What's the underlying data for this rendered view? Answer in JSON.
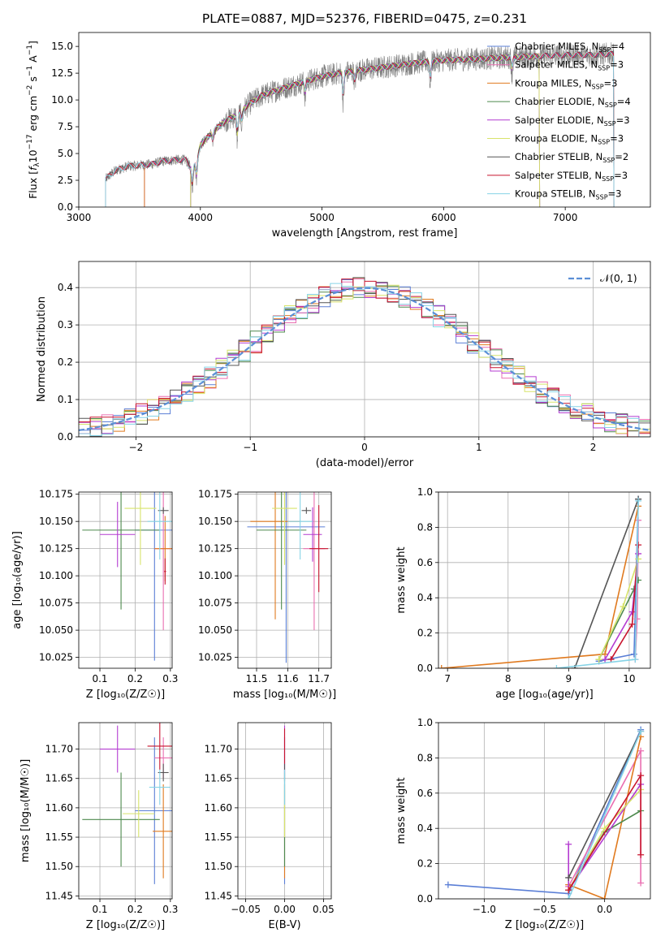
{
  "figure_title": "PLATE=0887, MJD=52376, FIBERID=0475, z=0.231",
  "colors": {
    "chabrier_miles": "#5b7fd6",
    "salpeter_miles": "#ea6fb1",
    "kroupa_miles": "#e07a1f",
    "chabrier_elodie": "#4e8a4e",
    "salpeter_elodie": "#b43bd1",
    "kroupa_elodie": "#d7e36a",
    "chabrier_stelib": "#555555",
    "salpeter_stelib": "#c8152e",
    "kroupa_stelib": "#86d3e6",
    "gaussian": "#5b8fd6",
    "data": "#808080"
  },
  "chart_data": [
    {
      "type": "line",
      "title": "PLATE=0887, MJD=52376, FIBERID=0475, z=0.231",
      "xlabel": "wavelength [Angstrom, rest frame]",
      "ylabel": "Flux [f_λ 10^-17 erg cm^-2 s^-1 A^-1]",
      "xlim": [
        3000,
        7700
      ],
      "ylim": [
        0,
        16.3
      ],
      "xticks": [
        "3000",
        "4000",
        "5000",
        "6000",
        "7000"
      ],
      "yticks": [
        "0.0",
        "2.5",
        "5.0",
        "7.5",
        "10.0",
        "12.5",
        "15.0"
      ],
      "legend_location": "right",
      "legend": [
        "Chabrier MILES, N_SSP=4",
        "Salpeter MILES, N_SSP=3",
        "Kroupa MILES, N_SSP=3",
        "Chabrier ELODIE, N_SSP=4",
        "Salpeter ELODIE, N_SSP=3",
        "Kroupa ELODIE, N_SSP=3",
        "Chabrier STELIB, N_SSP=2",
        "Salpeter STELIB, N_SSP=3",
        "Kroupa STELIB, N_SSP=3"
      ],
      "continuum": {
        "x": [
          3220,
          3300,
          3400,
          3500,
          3600,
          3700,
          3800,
          3880,
          3930,
          3970,
          4000,
          4100,
          4200,
          4300,
          4400,
          4500,
          4600,
          4800,
          5000,
          5200,
          5400,
          5600,
          5800,
          6000,
          6200,
          6400,
          6600,
          6800,
          7000,
          7200,
          7400
        ],
        "y": [
          2.6,
          3.4,
          3.8,
          3.9,
          4.0,
          4.3,
          4.4,
          4.4,
          3.5,
          4.3,
          5.8,
          7.0,
          8.0,
          8.6,
          9.6,
          10.4,
          10.8,
          11.5,
          12.2,
          12.6,
          12.9,
          13.2,
          13.5,
          13.7,
          13.8,
          13.9,
          14.0,
          14.1,
          14.2,
          14.2,
          14.3
        ]
      },
      "absorption_lines": [
        {
          "x": 3934,
          "depth": 2.0
        },
        {
          "x": 3968,
          "depth": 1.8
        },
        {
          "x": 4102,
          "depth": 1.0
        },
        {
          "x": 4304,
          "depth": 2.5
        },
        {
          "x": 4340,
          "depth": 1.2
        },
        {
          "x": 4861,
          "depth": 1.5
        },
        {
          "x": 5175,
          "depth": 3.0
        },
        {
          "x": 5270,
          "depth": 1.2
        },
        {
          "x": 5890,
          "depth": 2.0
        },
        {
          "x": 6563,
          "depth": 1.5
        }
      ],
      "model_start_x": [
        3540,
        3540,
        3540,
        3920,
        3920,
        3920,
        3220,
        3220,
        3220
      ],
      "model_end_x": [
        7400,
        7400,
        7400,
        6790,
        6790,
        6790,
        7400,
        7400,
        7400
      ]
    },
    {
      "type": "step",
      "xlabel": "(data-model)/error",
      "ylabel": "Normed distribution",
      "xlim": [
        -2.5,
        2.5
      ],
      "ylim": [
        0,
        0.47
      ],
      "xticks": [
        "−2",
        "−1",
        "0",
        "1",
        "2"
      ],
      "yticks": [
        "0.0",
        "0.1",
        "0.2",
        "0.3",
        "0.4"
      ],
      "legend": [
        "𝒩(0, 1)"
      ],
      "legend_location": "top-right",
      "bin_width": 0.1
    },
    {
      "type": "scatter",
      "xlabel": "Z [log₁₀(Z/Z☉)]",
      "ylabel": "age  [log₁₀(age/yr)]",
      "xlim": [
        0.04,
        0.305
      ],
      "ylim": [
        10.015,
        10.177
      ],
      "xticks": [
        "0.1",
        "0.2",
        "0.3"
      ],
      "yticks": [
        "10.025",
        "10.050",
        "10.075",
        "10.100",
        "10.125",
        "10.150",
        "10.175"
      ],
      "points": [
        {
          "x": 0.255,
          "y": 10.142,
          "xerr": 0.055,
          "yerr": 0.12
        },
        {
          "x": 0.28,
          "y": 10.125,
          "xerr": 0.025,
          "yerr": 0.075
        },
        {
          "x": 0.285,
          "y": 10.125,
          "xerr": 0.03,
          "yerr": 0.03
        },
        {
          "x": 0.16,
          "y": 10.142,
          "xerr": 0.11,
          "yerr": 0.073
        },
        {
          "x": 0.15,
          "y": 10.138,
          "xerr": 0.05,
          "yerr": 0.03
        },
        {
          "x": 0.215,
          "y": 10.162,
          "xerr": 0.045,
          "yerr": 0.052
        },
        {
          "x": 0.28,
          "y": 10.16,
          "xerr": 0.015,
          "yerr": 0.003
        },
        {
          "x": 0.285,
          "y": 10.104,
          "xerr": 0.003,
          "yerr": 0.012
        },
        {
          "x": 0.27,
          "y": 10.15,
          "xerr": 0.035,
          "yerr": 0.035
        }
      ]
    },
    {
      "type": "scatter",
      "xlabel": "mass [log₁₀(M/M☉)]",
      "ylabel": "",
      "xlim": [
        11.44,
        11.74
      ],
      "ylim": [
        10.015,
        10.177
      ],
      "xticks": [
        "11.5",
        "11.6",
        "11.7"
      ],
      "yticks": [
        "10.025",
        "10.050",
        "10.075",
        "10.100",
        "10.125",
        "10.150",
        "10.175"
      ],
      "points": [
        {
          "x": 11.595,
          "y": 10.145,
          "xerr": 0.125,
          "yerr": 0.125
        },
        {
          "x": 11.685,
          "y": 10.125,
          "xerr": 0.035,
          "yerr": 0.075
        },
        {
          "x": 11.56,
          "y": 10.15,
          "xerr": 0.08,
          "yerr": 0.09
        },
        {
          "x": 11.58,
          "y": 10.142,
          "xerr": 0.08,
          "yerr": 0.073
        },
        {
          "x": 11.68,
          "y": 10.138,
          "xerr": 0.03,
          "yerr": 0.025
        },
        {
          "x": 11.59,
          "y": 10.162,
          "xerr": 0.04,
          "yerr": 0.052
        },
        {
          "x": 11.66,
          "y": 10.16,
          "xerr": 0.015,
          "yerr": 0.003
        },
        {
          "x": 11.7,
          "y": 10.125,
          "xerr": 0.03,
          "yerr": 0.04
        },
        {
          "x": 11.64,
          "y": 10.15,
          "xerr": 0.04,
          "yerr": 0.035
        }
      ]
    },
    {
      "type": "line",
      "xlabel": "age  [log₁₀(age/yr)]",
      "ylabel": "mass weight",
      "xlim": [
        6.85,
        10.35
      ],
      "ylim": [
        0,
        1.0
      ],
      "xticks": [
        "7",
        "8",
        "9",
        "10"
      ],
      "yticks": [
        "0.0",
        "0.2",
        "0.4",
        "0.6",
        "0.8",
        "1.0"
      ],
      "series": [
        {
          "x": [
            9.5,
            10.08,
            10.15
          ],
          "y": [
            0.04,
            0.08,
            0.96
          ]
        },
        {
          "x": [
            10.1,
            10.13,
            10.15
          ],
          "y": [
            0.05,
            0.28,
            0.84
          ]
        },
        {
          "x": [
            6.9,
            9.6,
            10.15
          ],
          "y": [
            0.0,
            0.08,
            0.92
          ]
        },
        {
          "x": [
            9.5,
            10.08,
            10.15
          ],
          "y": [
            0.05,
            0.45,
            0.5
          ]
        },
        {
          "x": [
            9.6,
            10.05,
            10.15
          ],
          "y": [
            0.05,
            0.32,
            0.65
          ]
        },
        {
          "x": [
            9.5,
            9.9,
            10.15
          ],
          "y": [
            0.05,
            0.35,
            0.62
          ]
        },
        {
          "x": [
            9.1,
            10.15
          ],
          "y": [
            0.0,
            0.96
          ]
        },
        {
          "x": [
            9.7,
            10.05,
            10.15
          ],
          "y": [
            0.05,
            0.25,
            0.7
          ]
        },
        {
          "x": [
            8.8,
            10.1,
            10.15
          ],
          "y": [
            0.0,
            0.05,
            0.95
          ]
        }
      ]
    },
    {
      "type": "scatter",
      "xlabel": "Z [log₁₀(Z/Z☉)]",
      "ylabel": "mass [log₁₀(M/M☉)]",
      "xlim": [
        0.04,
        0.305
      ],
      "ylim": [
        11.445,
        11.745
      ],
      "xticks": [
        "0.1",
        "0.2",
        "0.3"
      ],
      "yticks": [
        "11.45",
        "11.50",
        "11.55",
        "11.60",
        "11.65",
        "11.70"
      ],
      "points": [
        {
          "x": 0.255,
          "y": 11.595,
          "xerr": 0.055,
          "yerr": 0.125
        },
        {
          "x": 0.28,
          "y": 11.685,
          "xerr": 0.025,
          "yerr": 0.035
        },
        {
          "x": 0.28,
          "y": 11.56,
          "xerr": 0.03,
          "yerr": 0.08
        },
        {
          "x": 0.16,
          "y": 11.58,
          "xerr": 0.11,
          "yerr": 0.08
        },
        {
          "x": 0.15,
          "y": 11.7,
          "xerr": 0.05,
          "yerr": 0.04
        },
        {
          "x": 0.21,
          "y": 11.59,
          "xerr": 0.045,
          "yerr": 0.04
        },
        {
          "x": 0.28,
          "y": 11.66,
          "xerr": 0.015,
          "yerr": 0.015
        },
        {
          "x": 0.27,
          "y": 11.705,
          "xerr": 0.035,
          "yerr": 0.04
        },
        {
          "x": 0.27,
          "y": 11.635,
          "xerr": 0.03,
          "yerr": 0.03
        }
      ]
    },
    {
      "type": "scatter",
      "xlabel": "E(B-V)",
      "ylabel": "",
      "xlim": [
        -0.06,
        0.06
      ],
      "ylim": [
        11.445,
        11.745
      ],
      "xticks": [
        "−0.05",
        "0.00",
        "0.05"
      ],
      "yticks": [
        "11.45",
        "11.50",
        "11.55",
        "11.60",
        "11.65",
        "11.70"
      ],
      "points": [
        {
          "x": 0.0,
          "y": 11.595,
          "xerr": 0.0,
          "yerr": 0.125
        },
        {
          "x": 0.0,
          "y": 11.685,
          "xerr": 0.0,
          "yerr": 0.035
        },
        {
          "x": 0.0,
          "y": 11.56,
          "xerr": 0.0,
          "yerr": 0.08
        },
        {
          "x": 0.0,
          "y": 11.58,
          "xerr": 0.0,
          "yerr": 0.08
        },
        {
          "x": 0.0,
          "y": 11.7,
          "xerr": 0.0,
          "yerr": 0.04
        },
        {
          "x": 0.0,
          "y": 11.59,
          "xerr": 0.0,
          "yerr": 0.04
        },
        {
          "x": 0.0,
          "y": 11.66,
          "xerr": 0.0,
          "yerr": 0.015
        },
        {
          "x": 0.0,
          "y": 11.705,
          "xerr": 0.0,
          "yerr": 0.03
        },
        {
          "x": 0.0,
          "y": 11.635,
          "xerr": 0.0,
          "yerr": 0.03
        }
      ]
    },
    {
      "type": "line",
      "xlabel": "Z [log₁₀(Z/Z☉)]",
      "ylabel": "mass weight",
      "xlim": [
        -1.38,
        0.38
      ],
      "ylim": [
        0,
        1.0
      ],
      "xticks": [
        "−1.0",
        "−0.5",
        "0.0"
      ],
      "yticks": [
        "0.0",
        "0.2",
        "0.4",
        "0.6",
        "0.8",
        "1.0"
      ],
      "series": [
        {
          "x": [
            -1.3,
            -0.3,
            0.3
          ],
          "y": [
            0.08,
            0.03,
            0.96
          ]
        },
        {
          "x": [
            -0.3,
            0.3,
            0.3
          ],
          "y": [
            0.07,
            0.84,
            0.09
          ]
        },
        {
          "x": [
            -0.3,
            0.0,
            0.3
          ],
          "y": [
            0.08,
            0.0,
            0.92
          ]
        },
        {
          "x": [
            -0.3,
            0.0,
            0.3
          ],
          "y": [
            0.05,
            0.38,
            0.5
          ]
        },
        {
          "x": [
            -0.3,
            -0.3,
            0.3
          ],
          "y": [
            0.31,
            0.05,
            0.65
          ]
        },
        {
          "x": [
            -0.3,
            0.0,
            0.3
          ],
          "y": [
            0.05,
            0.4,
            0.62
          ]
        },
        {
          "x": [
            -0.3,
            0.3
          ],
          "y": [
            0.12,
            0.95
          ]
        },
        {
          "x": [
            -0.3,
            0.3,
            0.3
          ],
          "y": [
            0.05,
            0.7,
            0.25
          ]
        },
        {
          "x": [
            -0.3,
            0.3
          ],
          "y": [
            0.0,
            0.95
          ]
        }
      ]
    }
  ]
}
